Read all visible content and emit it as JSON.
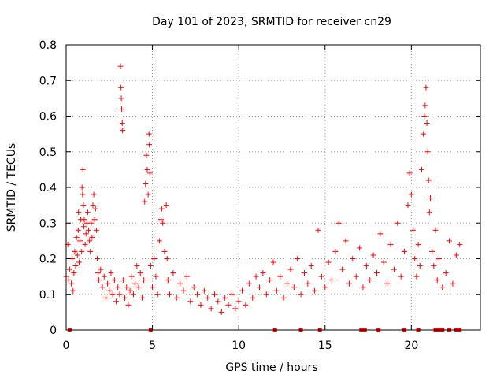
{
  "chart_data": {
    "type": "scatter",
    "title": "Day 101 of 2023, SRMTID for receiver cn29",
    "xlabel": "GPS time / hours",
    "ylabel": "SRMTID / TECUs",
    "xlim": [
      0,
      24
    ],
    "ylim": [
      0,
      0.8
    ],
    "xticks": [
      0,
      5,
      10,
      15,
      20
    ],
    "xtick_labels": [
      "0",
      "5",
      "10",
      "15",
      "20"
    ],
    "yticks": [
      0,
      0.1,
      0.2,
      0.3,
      0.4,
      0.5,
      0.6,
      0.7,
      0.8
    ],
    "ytick_labels": [
      "0",
      "0.1",
      "0.2",
      "0.3",
      "0.4",
      "0.5",
      "0.6",
      "0.7",
      "0.8"
    ],
    "grid": true,
    "marker": "+",
    "color": "#ff0000",
    "series": [
      {
        "name": "SRMTID",
        "points": [
          [
            0.0,
            0.15
          ],
          [
            0.1,
            0.24
          ],
          [
            0.15,
            0.14
          ],
          [
            0.2,
            0.17
          ],
          [
            0.3,
            0.13
          ],
          [
            0.35,
            0.2
          ],
          [
            0.4,
            0.11
          ],
          [
            0.45,
            0.16
          ],
          [
            0.5,
            0.22
          ],
          [
            0.55,
            0.18
          ],
          [
            0.6,
            0.26
          ],
          [
            0.65,
            0.21
          ],
          [
            0.7,
            0.28
          ],
          [
            0.72,
            0.33
          ],
          [
            0.75,
            0.19
          ],
          [
            0.8,
            0.25
          ],
          [
            0.85,
            0.31
          ],
          [
            0.9,
            0.22
          ],
          [
            0.92,
            0.4
          ],
          [
            0.95,
            0.38
          ],
          [
            0.97,
            0.45
          ],
          [
            1.0,
            0.35
          ],
          [
            1.02,
            0.29
          ],
          [
            1.05,
            0.31
          ],
          [
            1.1,
            0.24
          ],
          [
            1.15,
            0.27
          ],
          [
            1.2,
            0.3
          ],
          [
            1.25,
            0.33
          ],
          [
            1.3,
            0.28
          ],
          [
            1.35,
            0.25
          ],
          [
            1.4,
            0.22
          ],
          [
            1.45,
            0.3
          ],
          [
            1.5,
            0.26
          ],
          [
            1.55,
            0.35
          ],
          [
            1.6,
            0.38
          ],
          [
            1.65,
            0.31
          ],
          [
            1.7,
            0.34
          ],
          [
            1.75,
            0.28
          ],
          [
            1.8,
            0.2
          ],
          [
            1.85,
            0.16
          ],
          [
            1.9,
            0.14
          ],
          [
            2.0,
            0.17
          ],
          [
            2.1,
            0.12
          ],
          [
            2.2,
            0.15
          ],
          [
            2.3,
            0.09
          ],
          [
            2.4,
            0.13
          ],
          [
            2.5,
            0.11
          ],
          [
            2.6,
            0.16
          ],
          [
            2.7,
            0.1
          ],
          [
            2.8,
            0.14
          ],
          [
            2.9,
            0.08
          ],
          [
            3.0,
            0.12
          ],
          [
            3.1,
            0.1
          ],
          [
            3.15,
            0.74
          ],
          [
            3.18,
            0.68
          ],
          [
            3.2,
            0.65
          ],
          [
            3.22,
            0.62
          ],
          [
            3.25,
            0.58
          ],
          [
            3.27,
            0.56
          ],
          [
            3.3,
            0.14
          ],
          [
            3.4,
            0.09
          ],
          [
            3.5,
            0.12
          ],
          [
            3.6,
            0.07
          ],
          [
            3.7,
            0.11
          ],
          [
            3.8,
            0.15
          ],
          [
            3.9,
            0.1
          ],
          [
            4.0,
            0.13
          ],
          [
            4.1,
            0.18
          ],
          [
            4.2,
            0.12
          ],
          [
            4.3,
            0.16
          ],
          [
            4.4,
            0.09
          ],
          [
            4.5,
            0.14
          ],
          [
            4.55,
            0.36
          ],
          [
            4.6,
            0.41
          ],
          [
            4.65,
            0.49
          ],
          [
            4.7,
            0.45
          ],
          [
            4.75,
            0.38
          ],
          [
            4.8,
            0.55
          ],
          [
            4.82,
            0.52
          ],
          [
            4.85,
            0.44
          ],
          [
            4.9,
            0.18
          ],
          [
            5.0,
            0.12
          ],
          [
            5.1,
            0.2
          ],
          [
            5.2,
            0.15
          ],
          [
            5.3,
            0.1
          ],
          [
            5.4,
            0.25
          ],
          [
            5.5,
            0.31
          ],
          [
            5.55,
            0.34
          ],
          [
            5.6,
            0.3
          ],
          [
            5.7,
            0.22
          ],
          [
            5.8,
            0.35
          ],
          [
            5.85,
            0.2
          ],
          [
            5.9,
            0.14
          ],
          [
            6.0,
            0.1
          ],
          [
            6.2,
            0.16
          ],
          [
            6.4,
            0.09
          ],
          [
            6.6,
            0.13
          ],
          [
            6.8,
            0.11
          ],
          [
            7.0,
            0.15
          ],
          [
            7.2,
            0.08
          ],
          [
            7.4,
            0.12
          ],
          [
            7.6,
            0.1
          ],
          [
            7.8,
            0.07
          ],
          [
            8.0,
            0.11
          ],
          [
            8.2,
            0.09
          ],
          [
            8.4,
            0.06
          ],
          [
            8.6,
            0.1
          ],
          [
            8.8,
            0.08
          ],
          [
            9.0,
            0.05
          ],
          [
            9.2,
            0.09
          ],
          [
            9.4,
            0.07
          ],
          [
            9.6,
            0.1
          ],
          [
            9.8,
            0.06
          ],
          [
            10.0,
            0.08
          ],
          [
            10.2,
            0.11
          ],
          [
            10.4,
            0.07
          ],
          [
            10.6,
            0.13
          ],
          [
            10.8,
            0.09
          ],
          [
            11.0,
            0.15
          ],
          [
            11.2,
            0.12
          ],
          [
            11.4,
            0.16
          ],
          [
            11.6,
            0.1
          ],
          [
            11.8,
            0.14
          ],
          [
            12.0,
            0.19
          ],
          [
            12.2,
            0.11
          ],
          [
            12.4,
            0.15
          ],
          [
            12.6,
            0.09
          ],
          [
            12.8,
            0.13
          ],
          [
            13.0,
            0.17
          ],
          [
            13.2,
            0.12
          ],
          [
            13.4,
            0.2
          ],
          [
            13.6,
            0.1
          ],
          [
            13.8,
            0.16
          ],
          [
            14.0,
            0.13
          ],
          [
            14.2,
            0.18
          ],
          [
            14.4,
            0.11
          ],
          [
            14.6,
            0.28
          ],
          [
            14.8,
            0.15
          ],
          [
            15.0,
            0.12
          ],
          [
            15.2,
            0.19
          ],
          [
            15.4,
            0.14
          ],
          [
            15.6,
            0.22
          ],
          [
            15.8,
            0.3
          ],
          [
            16.0,
            0.17
          ],
          [
            16.2,
            0.25
          ],
          [
            16.4,
            0.13
          ],
          [
            16.6,
            0.2
          ],
          [
            16.8,
            0.15
          ],
          [
            17.0,
            0.23
          ],
          [
            17.2,
            0.12
          ],
          [
            17.4,
            0.18
          ],
          [
            17.6,
            0.14
          ],
          [
            17.8,
            0.21
          ],
          [
            18.0,
            0.16
          ],
          [
            18.2,
            0.27
          ],
          [
            18.4,
            0.19
          ],
          [
            18.6,
            0.13
          ],
          [
            18.8,
            0.24
          ],
          [
            19.0,
            0.17
          ],
          [
            19.2,
            0.3
          ],
          [
            19.4,
            0.15
          ],
          [
            19.6,
            0.22
          ],
          [
            19.8,
            0.35
          ],
          [
            19.9,
            0.44
          ],
          [
            20.0,
            0.38
          ],
          [
            20.1,
            0.28
          ],
          [
            20.2,
            0.2
          ],
          [
            20.3,
            0.15
          ],
          [
            20.4,
            0.24
          ],
          [
            20.5,
            0.18
          ],
          [
            20.6,
            0.45
          ],
          [
            20.7,
            0.55
          ],
          [
            20.75,
            0.6
          ],
          [
            20.8,
            0.63
          ],
          [
            20.85,
            0.68
          ],
          [
            20.9,
            0.58
          ],
          [
            20.95,
            0.5
          ],
          [
            21.0,
            0.42
          ],
          [
            21.05,
            0.33
          ],
          [
            21.1,
            0.37
          ],
          [
            21.2,
            0.22
          ],
          [
            21.3,
            0.18
          ],
          [
            21.4,
            0.28
          ],
          [
            21.5,
            0.14
          ],
          [
            21.6,
            0.2
          ],
          [
            21.8,
            0.12
          ],
          [
            22.0,
            0.16
          ],
          [
            22.2,
            0.25
          ],
          [
            22.4,
            0.13
          ],
          [
            22.6,
            0.21
          ],
          [
            22.8,
            0.24
          ]
        ]
      }
    ],
    "gap_markers_x": [
      0.2,
      4.9,
      12.1,
      13.6,
      14.7,
      17.1,
      17.3,
      18.1,
      19.6,
      20.4,
      21.4,
      21.6,
      21.8,
      22.2,
      22.6,
      22.8
    ]
  }
}
